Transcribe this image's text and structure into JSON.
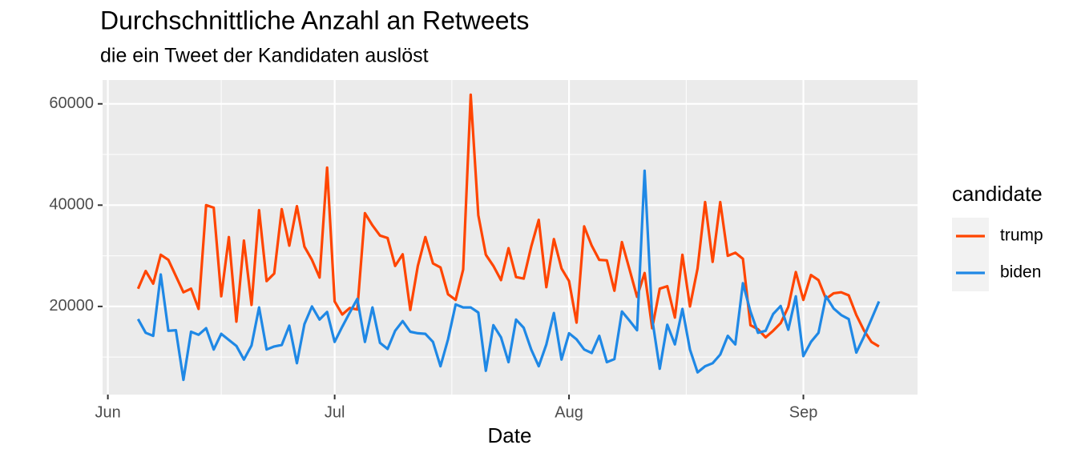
{
  "chart_data": {
    "type": "line",
    "title": "Durchschnittliche Anzahl an Retweets",
    "subtitle": "die ein Tweet der Kandidaten auslöst",
    "xlabel": "Date",
    "legend_title": "candidate",
    "legend": "right",
    "grid": true,
    "x": [
      4,
      5,
      6,
      7,
      8,
      9,
      10,
      11,
      12,
      13,
      14,
      15,
      16,
      17,
      18,
      19,
      20,
      21,
      22,
      23,
      24,
      25,
      26,
      27,
      28,
      29,
      30,
      31,
      32,
      33,
      34,
      35,
      36,
      37,
      38,
      39,
      40,
      41,
      42,
      43,
      44,
      45,
      46,
      47,
      48,
      49,
      50,
      51,
      52,
      53,
      54,
      55,
      56,
      57,
      58,
      59,
      60,
      61,
      62,
      63,
      64,
      65,
      66,
      67,
      68,
      69,
      70,
      71,
      72,
      73,
      74,
      75,
      76,
      77,
      78,
      79,
      80,
      81,
      82,
      83,
      84,
      85,
      86,
      87,
      88,
      89,
      90,
      91,
      92,
      93,
      94,
      95,
      96,
      97,
      98,
      99,
      100,
      101,
      102
    ],
    "xlim": [
      -0.7,
      107.1
    ],
    "xticks": [
      {
        "value": 0,
        "label": "Jun"
      },
      {
        "value": 30,
        "label": "Jul"
      },
      {
        "value": 61,
        "label": "Aug"
      },
      {
        "value": 92,
        "label": "Sep"
      }
    ],
    "ylim": [
      2600,
      64700
    ],
    "yticks": [
      20000,
      40000,
      60000
    ],
    "series": [
      {
        "name": "trump",
        "color": "#ff4500",
        "values": [
          23500,
          27000,
          24500,
          30200,
          29200,
          26000,
          22800,
          23500,
          19500,
          40000,
          39500,
          22000,
          33700,
          17000,
          33000,
          20300,
          39000,
          25000,
          26500,
          39200,
          32000,
          39800,
          31800,
          29200,
          25700,
          47400,
          21000,
          18400,
          19700,
          19400,
          38400,
          36000,
          34000,
          33500,
          28000,
          30300,
          19300,
          28000,
          33700,
          28500,
          27700,
          22400,
          21300,
          27300,
          61800,
          38000,
          30200,
          28000,
          25200,
          31500,
          25800,
          25500,
          31800,
          37100,
          23800,
          33300,
          27500,
          25000,
          16800,
          35800,
          32000,
          29200,
          29100,
          23100,
          32700,
          27300,
          21900,
          26600,
          15700,
          23500,
          24000,
          17800,
          30200,
          20000,
          27500,
          40600,
          28800,
          40600,
          30000,
          30600,
          29400,
          16300,
          15500,
          13900,
          15200,
          16700,
          19900,
          26800,
          21300,
          26200,
          25200,
          21500,
          22600,
          22800,
          22200,
          18300,
          15300,
          13000,
          12100
        ]
      },
      {
        "name": "biden",
        "color": "#1f88e5",
        "values": [
          17500,
          14800,
          14200,
          26300,
          15200,
          15300,
          5500,
          15000,
          14400,
          15700,
          11500,
          14600,
          13400,
          12200,
          9500,
          12300,
          19800,
          11500,
          12100,
          12400,
          16200,
          8800,
          16500,
          20000,
          17400,
          18900,
          13000,
          16000,
          18800,
          21500,
          13000,
          19800,
          12800,
          11600,
          15200,
          17100,
          15000,
          14700,
          14600,
          13000,
          8200,
          13500,
          20400,
          19800,
          19800,
          18800,
          7300,
          16300,
          13900,
          9000,
          17400,
          15800,
          11500,
          8200,
          12500,
          18700,
          9500,
          14700,
          13500,
          11500,
          10800,
          14200,
          9000,
          9600,
          19000,
          17200,
          15300,
          46800,
          17500,
          7700,
          16400,
          12500,
          19500,
          11500,
          7000,
          8200,
          8800,
          10500,
          14200,
          12500,
          24600,
          19000,
          14800,
          15200,
          18500,
          20100,
          15400,
          22000,
          10200,
          13000,
          14800,
          22000,
          19600,
          18300,
          17500,
          10900,
          14000,
          17500,
          21000
        ]
      }
    ]
  }
}
